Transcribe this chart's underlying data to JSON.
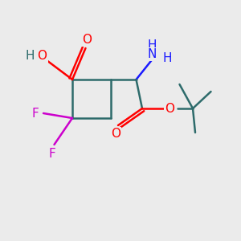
{
  "bg_color": "#ebebeb",
  "bond_color": "#2d6b6b",
  "bond_width": 1.8,
  "atom_colors": {
    "O": "#ff0000",
    "N": "#1a1aff",
    "F": "#cc00cc",
    "C": "#2d6b6b",
    "H": "#2d6b6b"
  },
  "font_size": 11,
  "fig_size": [
    3.0,
    3.0
  ],
  "dpi": 100
}
